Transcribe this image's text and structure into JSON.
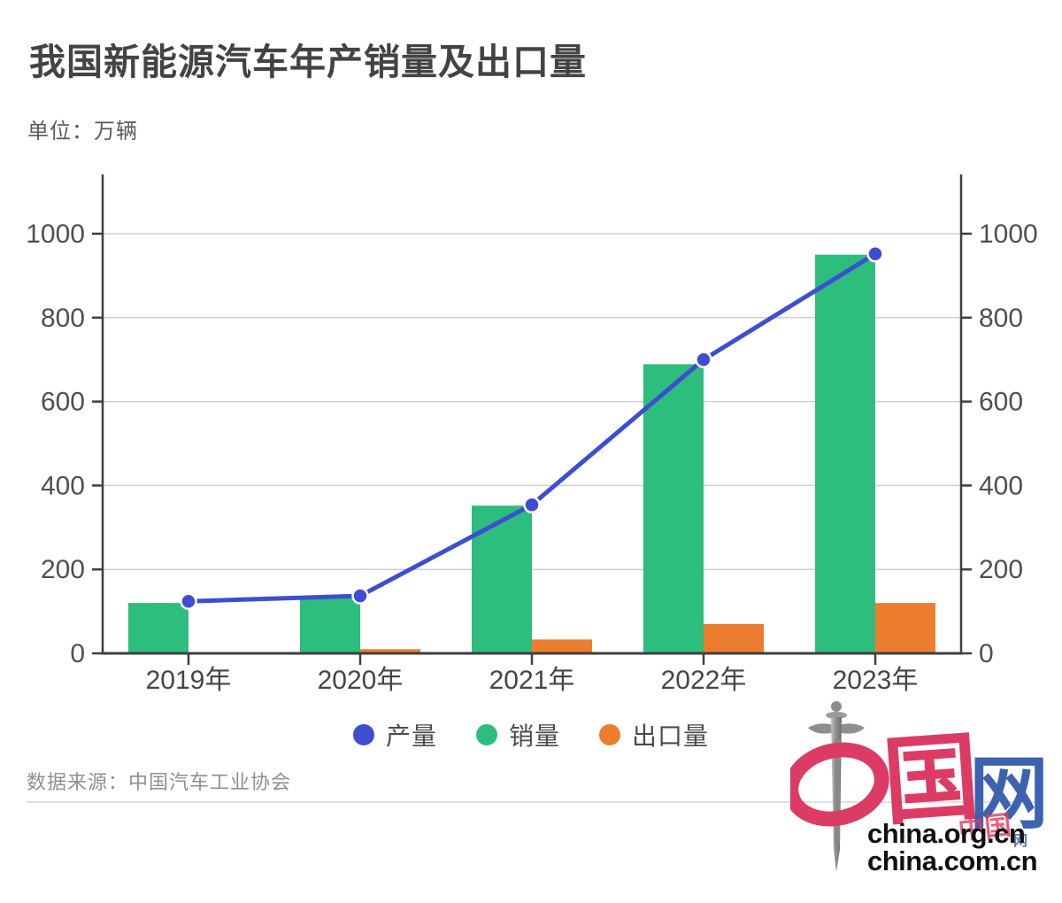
{
  "title": "我国新能源汽车年产销量及出口量",
  "unit_label": "单位：万辆",
  "source_label": "数据来源：中国汽车工业协会",
  "chart_data": {
    "type": "bar+line",
    "categories": [
      "2019年",
      "2020年",
      "2021年",
      "2022年",
      "2023年"
    ],
    "series": [
      {
        "name": "产量",
        "type": "line",
        "color": "#3D4ED0",
        "values": [
          124,
          137,
          354,
          700,
          952
        ]
      },
      {
        "name": "销量",
        "type": "bar",
        "color": "#2DBD7D",
        "values": [
          120,
          137,
          352,
          689,
          950
        ]
      },
      {
        "name": "出口量",
        "type": "bar",
        "color": "#ED7D2E",
        "values": [
          0,
          10,
          33,
          70,
          120
        ]
      }
    ],
    "y_ticks": [
      0,
      200,
      400,
      600,
      800,
      1000
    ],
    "ylabel": "",
    "xlabel": "",
    "ylim": [
      0,
      1140
    ],
    "grid": true,
    "dual_y_axis": true,
    "legend_position": "bottom"
  },
  "colors": {
    "axis": "#3f3f3f",
    "grid": "#cfcfcf",
    "tick_label": "#4f4f4f",
    "category_label": "#454545"
  },
  "logo": {
    "guo": "国",
    "wang": "网",
    "mini_seal": "中国",
    "mini_wang": "网",
    "line1": "china.org.cn",
    "line2": "china.com.cn",
    "red": "#DC3C64",
    "blue": "#3C62B0"
  }
}
